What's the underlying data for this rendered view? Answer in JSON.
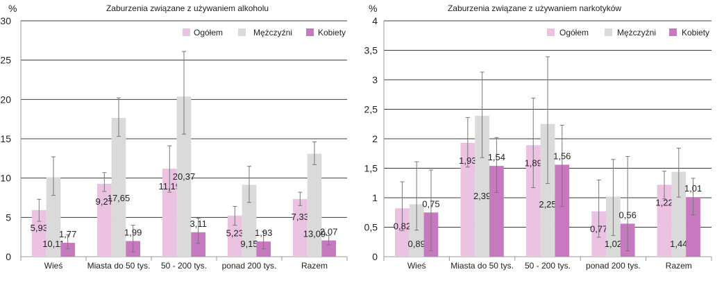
{
  "chart_data": [
    {
      "type": "bar",
      "title": "Zaburzenia związane z używaniem alkoholu",
      "ylabel": "%",
      "ylim": [
        0,
        30
      ],
      "yticks": [
        "0",
        "5",
        "10",
        "15",
        "20",
        "25",
        "30"
      ],
      "categories": [
        "Wieś",
        "Miasta do 50 tys.",
        "50 - 200 tys.",
        "ponad 200 tys.",
        "Razem"
      ],
      "grid": true,
      "legend_position": "top-right",
      "series": [
        {
          "name": "Ogółem",
          "color": "#ecc2e2",
          "values": [
            5.93,
            9.27,
            11.19,
            5.23,
            7.33
          ],
          "labels": [
            "5,93",
            "9,27",
            "11,19",
            "5,23",
            "7,33"
          ],
          "err_low": [
            4.5,
            8.3,
            8.2,
            4.0,
            6.5
          ],
          "err_high": [
            7.3,
            10.7,
            14.1,
            6.4,
            8.2
          ]
        },
        {
          "name": "Mężczyźni",
          "color": "#dadada",
          "values": [
            10.11,
            17.65,
            20.37,
            9.15,
            13.09
          ],
          "labels": [
            "10,11",
            "17,65",
            "20,37",
            "9,15",
            "13,09"
          ],
          "err_low": [
            7.8,
            15.3,
            15.6,
            6.9,
            11.7
          ],
          "err_high": [
            12.7,
            20.2,
            26.1,
            11.5,
            14.6
          ]
        },
        {
          "name": "Kobiety",
          "color": "#c779c0",
          "values": [
            1.77,
            1.99,
            3.11,
            1.93,
            2.07
          ],
          "labels": [
            "1,77",
            "1,99",
            "3,11",
            "1,93",
            "2,07"
          ],
          "err_low": [
            1.0,
            0.6,
            1.7,
            1.0,
            1.5
          ],
          "err_high": [
            2.8,
            4.0,
            4.9,
            3.2,
            2.7
          ]
        }
      ]
    },
    {
      "type": "bar",
      "title": "Zaburzenia związane z używaniem narkotyków",
      "ylabel": "%",
      "ylim": [
        0,
        4
      ],
      "yticks": [
        "0",
        "0,5",
        "1",
        "1,5",
        "2",
        "2,5",
        "3",
        "3,5",
        "4"
      ],
      "categories": [
        "Wieś",
        "Miasta do 50 tys.",
        "50 - 200 tys.",
        "ponad 200 tys.",
        "Razem"
      ],
      "grid": true,
      "legend_position": "top-right",
      "series": [
        {
          "name": "Ogółem",
          "color": "#ecc2e2",
          "values": [
            0.82,
            1.93,
            1.89,
            0.77,
            1.22
          ],
          "labels": [
            "0,82",
            "1,93",
            "1,89",
            "0,77",
            "1,22"
          ],
          "err_low": [
            0.44,
            1.52,
            1.17,
            0.33,
            0.98
          ],
          "err_high": [
            1.27,
            2.36,
            2.69,
            1.3,
            1.45
          ]
        },
        {
          "name": "Mężczyźni",
          "color": "#dadada",
          "values": [
            0.89,
            2.39,
            2.25,
            1.02,
            1.44
          ],
          "labels": [
            "0,89",
            "2,39",
            "2,25",
            "1,02",
            "1,44"
          ],
          "err_low": [
            0.45,
            1.68,
            1.24,
            0.36,
            1.01
          ],
          "err_high": [
            1.61,
            3.13,
            3.39,
            1.65,
            1.84
          ]
        },
        {
          "name": "Kobiety",
          "color": "#c779c0",
          "values": [
            0.75,
            1.54,
            1.56,
            0.56,
            1.01
          ],
          "labels": [
            "0,75",
            "1,54",
            "1,56",
            "0,56",
            "1,01"
          ],
          "err_low": [
            0.1,
            1.09,
            0.85,
            0.1,
            0.71
          ],
          "err_high": [
            1.47,
            2.02,
            2.23,
            1.7,
            1.33
          ]
        }
      ]
    }
  ]
}
